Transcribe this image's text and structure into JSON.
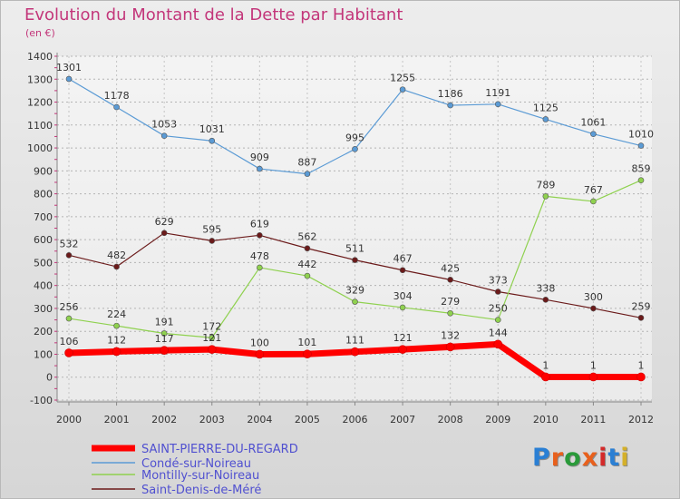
{
  "header": {
    "title": "Evolution du Montant de la Dette par Habitant",
    "unit": "(en €)"
  },
  "logo": {
    "text": "Proxiti"
  },
  "chart_data": {
    "type": "line",
    "title": "Evolution du Montant de la Dette par Habitant",
    "subtitle": "(en €)",
    "xlabel": "",
    "ylabel": "",
    "x": [
      "2000",
      "2001",
      "2002",
      "2003",
      "2004",
      "2005",
      "2006",
      "2007",
      "2008",
      "2009",
      "2010",
      "2011",
      "2012"
    ],
    "ylim": [
      -100,
      1400
    ],
    "yticks": [
      -100,
      0,
      100,
      200,
      300,
      400,
      500,
      600,
      700,
      800,
      900,
      1000,
      1100,
      1200,
      1300,
      1400
    ],
    "grid": true,
    "legend": "bottom",
    "series": [
      {
        "name": "SAINT-PIERRE-DU-REGARD",
        "color": "#ff0000",
        "values": [
          106,
          112,
          117,
          121,
          100,
          101,
          111,
          121,
          132,
          144,
          1,
          1,
          1
        ]
      },
      {
        "name": "Condé-sur-Noireau",
        "color": "#5b9bd5",
        "values": [
          1301,
          1178,
          1053,
          1031,
          909,
          887,
          995,
          1255,
          1186,
          1191,
          1125,
          1061,
          1010
        ]
      },
      {
        "name": "Montilly-sur-Noireau",
        "color": "#8fd14f",
        "values": [
          256,
          224,
          191,
          172,
          478,
          442,
          329,
          304,
          279,
          250,
          789,
          767,
          859
        ]
      },
      {
        "name": "Saint-Denis-de-Méré",
        "color": "#6b1a1a",
        "values": [
          532,
          482,
          629,
          595,
          619,
          562,
          511,
          467,
          425,
          373,
          338,
          300,
          259
        ]
      }
    ]
  }
}
